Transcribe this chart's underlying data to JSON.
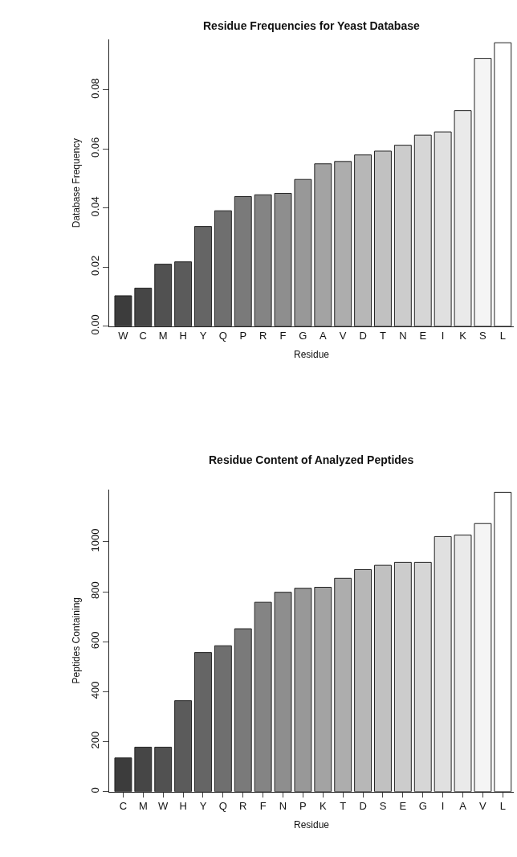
{
  "chart_data": [
    {
      "type": "bar",
      "title": "Residue Frequencies for Yeast Database",
      "xlabel": "Residue",
      "ylabel": "Database Frequency",
      "categories": [
        "W",
        "C",
        "M",
        "H",
        "Y",
        "Q",
        "P",
        "R",
        "F",
        "G",
        "A",
        "V",
        "D",
        "T",
        "N",
        "E",
        "I",
        "K",
        "S",
        "L"
      ],
      "values": [
        0.0103,
        0.0129,
        0.021,
        0.0218,
        0.0338,
        0.0391,
        0.0439,
        0.0445,
        0.045,
        0.0497,
        0.055,
        0.0558,
        0.058,
        0.0593,
        0.0613,
        0.0647,
        0.0658,
        0.073,
        0.0907,
        0.096
      ],
      "colors": [
        "#3c3c3c",
        "#464646",
        "#515151",
        "#5b5b5b",
        "#656565",
        "#6f6f6f",
        "#7a7a7a",
        "#848484",
        "#8e8e8e",
        "#989898",
        "#a3a3a3",
        "#adadad",
        "#b7b7b7",
        "#c1c1c1",
        "#cccccc",
        "#d6d6d6",
        "#e0e0e0",
        "#eaeaea",
        "#f5f5f5",
        "#ffffff"
      ],
      "ylim": [
        0,
        0.097
      ],
      "yticks": [
        {
          "value": 0,
          "label": "0.00"
        },
        0.02,
        0.04,
        0.06,
        0.08
      ]
    },
    {
      "type": "bar",
      "title": "Residue Content of Analyzed Peptides",
      "xlabel": "Residue",
      "ylabel": "Peptides Containing",
      "categories": [
        "C",
        "M",
        "W",
        "H",
        "Y",
        "Q",
        "R",
        "F",
        "N",
        "P",
        "K",
        "T",
        "D",
        "S",
        "E",
        "G",
        "I",
        "A",
        "V",
        "L"
      ],
      "values": [
        135,
        178,
        178,
        364,
        557,
        584,
        652,
        758,
        798,
        814,
        818,
        854,
        889,
        906,
        918,
        918,
        1021,
        1027,
        1073,
        1198
      ],
      "colors": [
        "#3c3c3c",
        "#464646",
        "#515151",
        "#5b5b5b",
        "#656565",
        "#6f6f6f",
        "#7a7a7a",
        "#848484",
        "#8e8e8e",
        "#989898",
        "#a3a3a3",
        "#adadad",
        "#b7b7b7",
        "#c1c1c1",
        "#cccccc",
        "#d6d6d6",
        "#e0e0e0",
        "#eaeaea",
        "#f5f5f5",
        "#ffffff"
      ],
      "ylim": [
        0,
        1210
      ],
      "yticks": [
        0,
        200,
        400,
        600,
        800,
        1000
      ]
    }
  ]
}
